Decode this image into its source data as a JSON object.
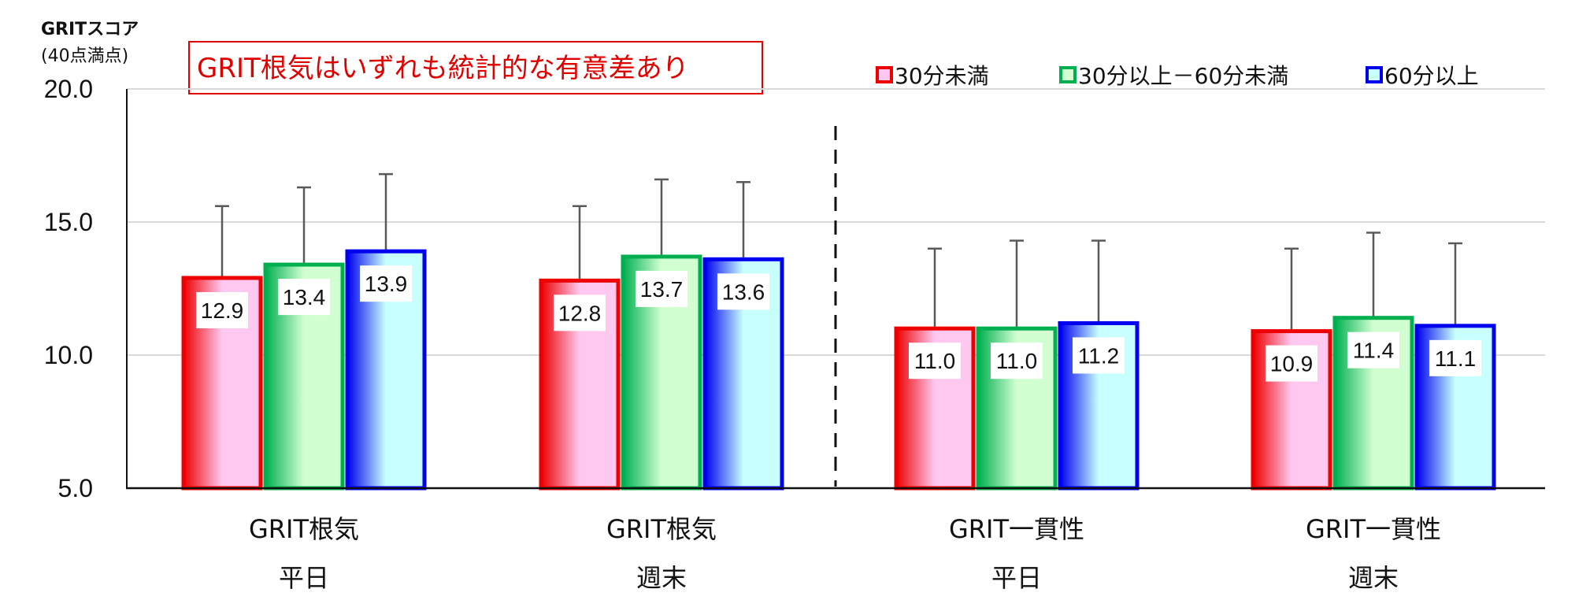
{
  "chart_data": {
    "type": "bar",
    "y_axis_title_line1": "GRITスコア",
    "y_axis_title_line2": "(40点満点)",
    "annotation": "GRIT根気はいずれも統計的な有意差あり",
    "ylim": [
      5.0,
      20.0
    ],
    "y_ticks": [
      "5.0",
      "10.0",
      "15.0",
      "20.0"
    ],
    "y_tick_values": [
      5,
      10,
      15,
      20
    ],
    "grid": true,
    "legend_position": "top-right",
    "categories": [
      {
        "line1": "GRIT根気",
        "line2": "平日"
      },
      {
        "line1": "GRIT根気",
        "line2": "週末"
      },
      {
        "line1": "GRIT一貫性",
        "line2": "平日"
      },
      {
        "line1": "GRIT一貫性",
        "line2": "週末"
      }
    ],
    "series": [
      {
        "name": "30分未満",
        "values": [
          12.9,
          12.8,
          11.0,
          10.9
        ],
        "value_labels": [
          "12.9",
          "12.8",
          "11.0",
          "10.9"
        ],
        "error_top": [
          15.6,
          15.6,
          14.0,
          14.0
        ],
        "color": "#ee0000",
        "fill_light": "#ffc8f0"
      },
      {
        "name": "30分以上－60分未満",
        "values": [
          13.4,
          13.7,
          11.0,
          11.4
        ],
        "value_labels": [
          "13.4",
          "13.7",
          "11.0",
          "11.4"
        ],
        "error_top": [
          16.3,
          16.6,
          14.3,
          14.6
        ],
        "color": "#00b050",
        "fill_light": "#d2ffd2"
      },
      {
        "name": "60分以上",
        "values": [
          13.9,
          13.6,
          11.2,
          11.1
        ],
        "value_labels": [
          "13.9",
          "13.6",
          "11.2",
          "11.1"
        ],
        "error_top": [
          16.8,
          16.5,
          14.3,
          14.2
        ],
        "color": "#0000ee",
        "fill_light": "#c8ffff"
      }
    ]
  }
}
